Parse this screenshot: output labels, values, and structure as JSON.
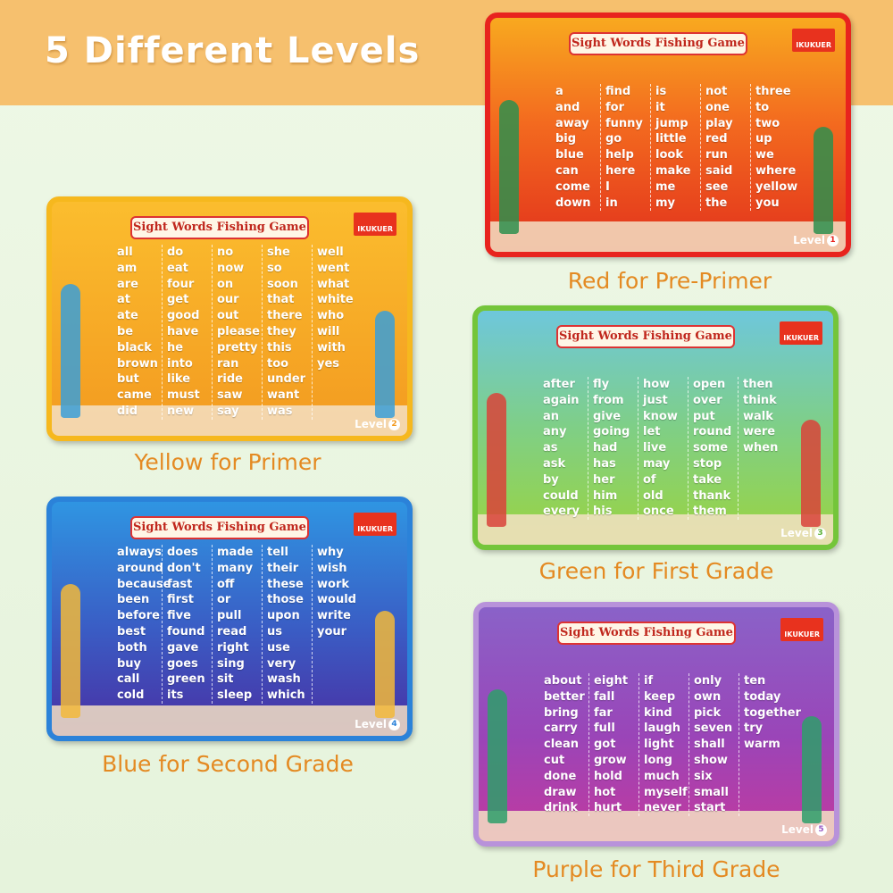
{
  "header": {
    "title": "5 Different Levels"
  },
  "cards": [
    {
      "title": "Sight Words Fishing Game",
      "brand": "IKUKUER",
      "level_label": "Level",
      "level": 1,
      "caption": "Red for Pre-Primer",
      "columns": [
        [
          "a",
          "and",
          "away",
          "big",
          "blue",
          "can",
          "come",
          "down"
        ],
        [
          "find",
          "for",
          "funny",
          "go",
          "help",
          "here",
          "I",
          "in"
        ],
        [
          "is",
          "it",
          "jump",
          "little",
          "look",
          "make",
          "me",
          "my"
        ],
        [
          "not",
          "one",
          "play",
          "red",
          "run",
          "said",
          "see",
          "the"
        ],
        [
          "three",
          "to",
          "two",
          "up",
          "we",
          "where",
          "yellow",
          "you"
        ]
      ]
    },
    {
      "title": "Sight Words Fishing Game",
      "brand": "IKUKUER",
      "level_label": "Level",
      "level": 2,
      "caption": "Yellow for Primer",
      "columns": [
        [
          "all",
          "am",
          "are",
          "at",
          "ate",
          "be",
          "black",
          "brown",
          "but",
          "came",
          "did"
        ],
        [
          "do",
          "eat",
          "four",
          "get",
          "good",
          "have",
          "he",
          "into",
          "like",
          "must",
          "new"
        ],
        [
          "no",
          "now",
          "on",
          "our",
          "out",
          "please",
          "pretty",
          "ran",
          "ride",
          "saw",
          "say"
        ],
        [
          "she",
          "so",
          "soon",
          "that",
          "there",
          "they",
          "this",
          "too",
          "under",
          "want",
          "was"
        ],
        [
          "well",
          "went",
          "what",
          "white",
          "who",
          "will",
          "with",
          "yes"
        ]
      ]
    },
    {
      "title": "Sight Words Fishing Game",
      "brand": "IKUKUER",
      "level_label": "Level",
      "level": 3,
      "caption": "Green for First Grade",
      "columns": [
        [
          "after",
          "again",
          "an",
          "any",
          "as",
          "ask",
          "by",
          "could",
          "every"
        ],
        [
          "fly",
          "from",
          "give",
          "going",
          "had",
          "has",
          "her",
          "him",
          "his"
        ],
        [
          "how",
          "just",
          "know",
          "let",
          "live",
          "may",
          "of",
          "old",
          "once"
        ],
        [
          "open",
          "over",
          "put",
          "round",
          "some",
          "stop",
          "take",
          "thank",
          "them"
        ],
        [
          "then",
          "think",
          "walk",
          "were",
          "when"
        ]
      ]
    },
    {
      "title": "Sight Words Fishing Game",
      "brand": "IKUKUER",
      "level_label": "Level",
      "level": 4,
      "caption": "Blue for Second Grade",
      "columns": [
        [
          "always",
          "around",
          "because",
          "been",
          "before",
          "best",
          "both",
          "buy",
          "call",
          "cold"
        ],
        [
          "does",
          "don't",
          "fast",
          "first",
          "five",
          "found",
          "gave",
          "goes",
          "green",
          "its"
        ],
        [
          "made",
          "many",
          "off",
          "or",
          "pull",
          "read",
          "right",
          "sing",
          "sit",
          "sleep"
        ],
        [
          "tell",
          "their",
          "these",
          "those",
          "upon",
          "us",
          "use",
          "very",
          "wash",
          "which"
        ],
        [
          "why",
          "wish",
          "work",
          "would",
          "write",
          "your"
        ]
      ]
    },
    {
      "title": "Sight Words Fishing Game",
      "brand": "IKUKUER",
      "level_label": "Level",
      "level": 5,
      "caption": "Purple for Third Grade",
      "columns": [
        [
          "about",
          "better",
          "bring",
          "carry",
          "clean",
          "cut",
          "done",
          "draw",
          "drink"
        ],
        [
          "eight",
          "fall",
          "far",
          "full",
          "got",
          "grow",
          "hold",
          "hot",
          "hurt"
        ],
        [
          "if",
          "keep",
          "kind",
          "laugh",
          "light",
          "long",
          "much",
          "myself",
          "never"
        ],
        [
          "only",
          "own",
          "pick",
          "seven",
          "shall",
          "show",
          "six",
          "small",
          "start"
        ],
        [
          "ten",
          "today",
          "together",
          "try",
          "warm"
        ]
      ]
    }
  ]
}
